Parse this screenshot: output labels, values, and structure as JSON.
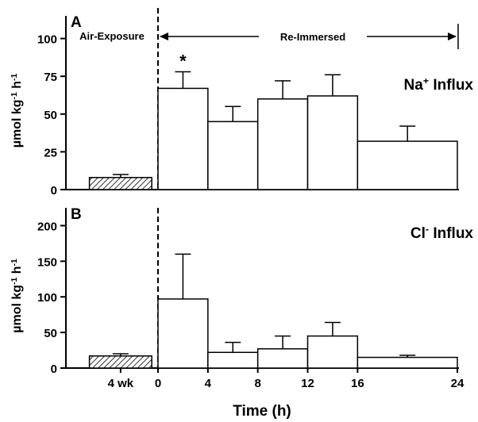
{
  "chart_data": [
    {
      "type": "bar",
      "panel": "A",
      "annotation": "Na+ Influx",
      "ylabel": "µmol kg-1 h-1",
      "ylim": [
        0,
        115
      ],
      "yticks": [
        0,
        25,
        50,
        75,
        100
      ],
      "phase_labels": {
        "air": "Air-Exposure",
        "reimmersed": "Re-Immersed"
      },
      "significance_marker": "*",
      "bars": [
        {
          "label": "4 wk",
          "start": -5.5,
          "end": -0.5,
          "value": 8,
          "error": 2,
          "hatched": true
        },
        {
          "label": "0-4",
          "start": 0,
          "end": 4,
          "value": 67,
          "error": 11,
          "significant": true
        },
        {
          "label": "4-8",
          "start": 4,
          "end": 8,
          "value": 45,
          "error": 10
        },
        {
          "label": "8-12",
          "start": 8,
          "end": 12,
          "value": 60,
          "error": 12
        },
        {
          "label": "12-16",
          "start": 12,
          "end": 16,
          "value": 62,
          "error": 14
        },
        {
          "label": "16-24",
          "start": 16,
          "end": 24,
          "value": 32,
          "error": 10
        }
      ]
    },
    {
      "type": "bar",
      "panel": "B",
      "annotation": "Cl- Influx",
      "ylabel": "µmol kg-1 h-1",
      "ylim": [
        0,
        225
      ],
      "yticks": [
        0,
        50,
        100,
        150,
        200
      ],
      "bars": [
        {
          "label": "4 wk",
          "start": -5.5,
          "end": -0.5,
          "value": 17,
          "error": 3,
          "hatched": true
        },
        {
          "label": "0-4",
          "start": 0,
          "end": 4,
          "value": 97,
          "error": 63
        },
        {
          "label": "4-8",
          "start": 4,
          "end": 8,
          "value": 22,
          "error": 14
        },
        {
          "label": "8-12",
          "start": 8,
          "end": 12,
          "value": 27,
          "error": 18
        },
        {
          "label": "12-16",
          "start": 12,
          "end": 16,
          "value": 45,
          "error": 19
        },
        {
          "label": "16-24",
          "start": 16,
          "end": 24,
          "value": 15,
          "error": 3
        }
      ]
    }
  ],
  "x_axis": {
    "xlabel": "Time (h)",
    "ticks": [
      {
        "value": -3,
        "label": "4 wk"
      },
      {
        "value": 0,
        "label": "0"
      },
      {
        "value": 4,
        "label": "4"
      },
      {
        "value": 8,
        "label": "8"
      },
      {
        "value": 12,
        "label": "12"
      },
      {
        "value": 16,
        "label": "16"
      },
      {
        "value": 24,
        "label": "24"
      }
    ]
  }
}
